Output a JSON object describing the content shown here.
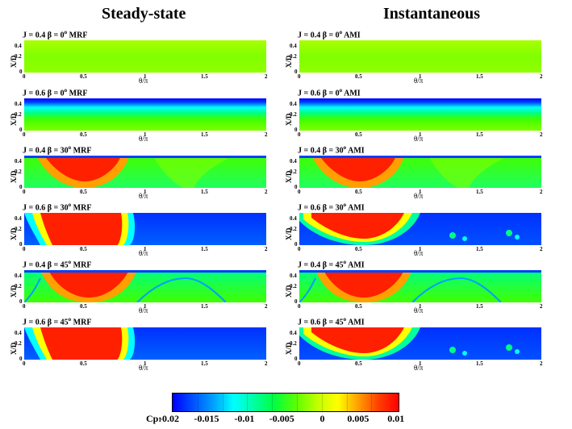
{
  "titles": {
    "left": "Steady-state",
    "right": "Instantaneous"
  },
  "axes": {
    "ylabel": "X/D",
    "xlabel": "θ/π",
    "yticks": [
      "0.4",
      "0.2",
      "0"
    ],
    "xticks": [
      "0",
      "0.5",
      "1",
      "1.5",
      "2"
    ]
  },
  "panels": [
    {
      "label": "J = 0.4 β = 0",
      "deg": "o",
      "suffix": " MRF",
      "pattern": "uniform"
    },
    {
      "label": "J = 0.4 β = 0",
      "deg": "o",
      "suffix": " AMI",
      "pattern": "uniform"
    },
    {
      "label": "J = 0.6 β = 0",
      "deg": "o",
      "suffix": " MRF",
      "pattern": "band"
    },
    {
      "label": "J = 0.6 β = 0",
      "deg": "o",
      "suffix": " AMI",
      "pattern": "band"
    },
    {
      "label": "J = 0.4 β = 30",
      "deg": "o",
      "suffix": " MRF",
      "pattern": "hot-left"
    },
    {
      "label": "J = 0.4 β = 30",
      "deg": "o",
      "suffix": " AMI",
      "pattern": "hot-left"
    },
    {
      "label": "J = 0.6 β = 30",
      "deg": "o",
      "suffix": " MRF",
      "pattern": "hot-narrow"
    },
    {
      "label": "J = 0.6 β = 30",
      "deg": "o",
      "suffix": " AMI",
      "pattern": "hot-wide"
    },
    {
      "label": "J = 0.4 β = 45",
      "deg": "o",
      "suffix": " MRF",
      "pattern": "waves"
    },
    {
      "label": "J = 0.4 β = 45",
      "deg": "o",
      "suffix": " AMI",
      "pattern": "waves"
    },
    {
      "label": "J = 0.6 β = 45",
      "deg": "o",
      "suffix": " MRF",
      "pattern": "hot-narrow"
    },
    {
      "label": "J = 0.6 β = 45",
      "deg": "o",
      "suffix": " AMI",
      "pattern": "hot-wide"
    }
  ],
  "colorbar": {
    "title": "Cp:",
    "ticks": [
      "-0.02",
      "-0.015",
      "-0.01",
      "-0.005",
      "0",
      "0.005",
      "0.01"
    ]
  }
}
